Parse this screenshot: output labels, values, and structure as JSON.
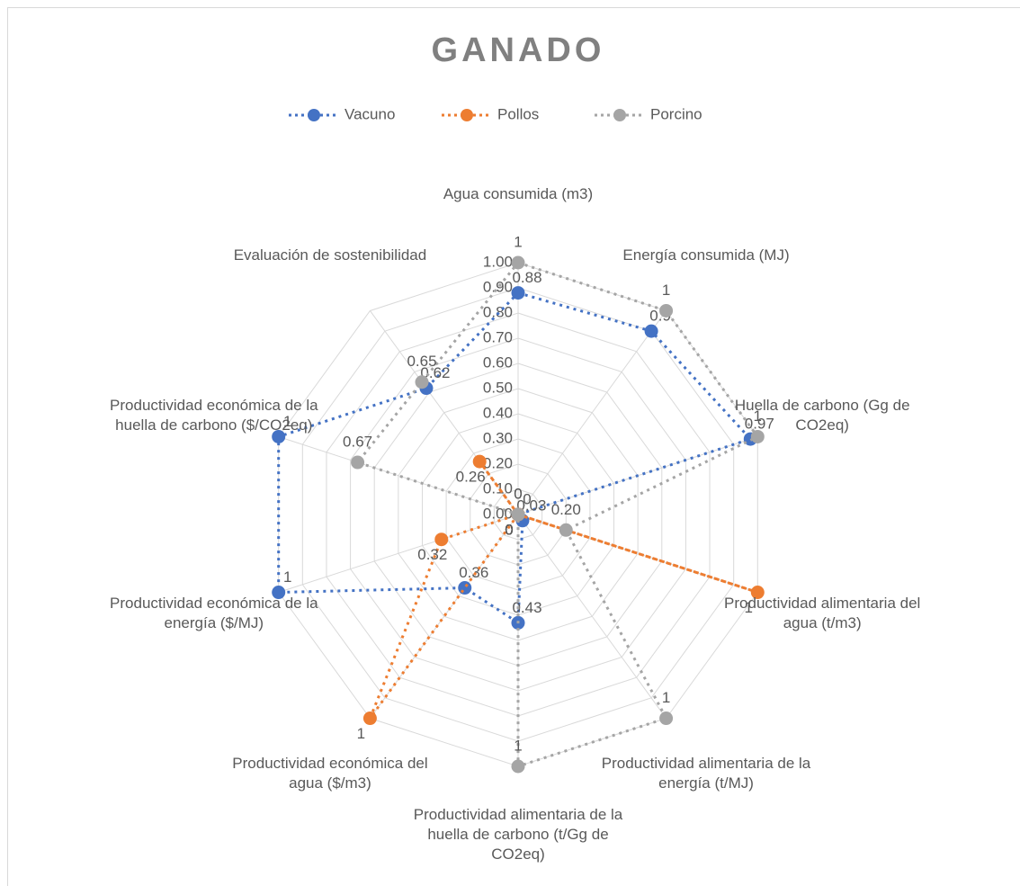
{
  "chart_data": {
    "type": "radar",
    "title": "GANADO",
    "categories": [
      "Agua consumida (m3)",
      "Energía consumida (MJ)",
      "Huella de carbono (Gg de CO2eq)",
      "Productividad alimentaria del agua (t/m3)",
      "Productividad alimentaria de la energía (t/MJ)",
      "Productividad alimentaria de la huella de carbono (t/Gg de CO2eq)",
      "Productividad económica del agua ($/m3)",
      "Productividad económica de la energía ($/MJ)",
      "Productividad económica de la huella de carbono ($/CO2eq)",
      "Evaluación de sostenibilidad"
    ],
    "series": [
      {
        "name": "Vacuno",
        "color": "#4472c4",
        "values": [
          0.88,
          0.9,
          0.97,
          0,
          0.03,
          0.43,
          0.36,
          1,
          1,
          0.62
        ]
      },
      {
        "name": "Pollos",
        "color": "#ed7d31",
        "values": [
          0,
          0,
          0,
          1,
          0,
          0,
          1,
          0.32,
          0,
          0.26
        ]
      },
      {
        "name": "Porcino",
        "color": "#a5a5a5",
        "values": [
          1,
          1,
          1,
          0.2,
          1,
          1,
          0,
          0,
          0.67,
          0.65
        ],
        "value_labels": [
          "1",
          "1",
          "1",
          "0.20",
          "1",
          "1",
          "0",
          "0",
          "0.67",
          "0.65"
        ]
      }
    ],
    "rlim": [
      0,
      1
    ],
    "rticks": [
      {
        "value": 0,
        "label": "0.00"
      },
      {
        "value": 0.1,
        "label": "0.10"
      },
      {
        "value": 0.2,
        "label": "0.20"
      },
      {
        "value": 0.3,
        "label": "0.30"
      },
      {
        "value": 0.4,
        "label": "0.40"
      },
      {
        "value": 0.5,
        "label": "0.50"
      },
      {
        "value": 0.6,
        "label": "0.60"
      },
      {
        "value": 0.7,
        "label": "0.70"
      },
      {
        "value": 0.8,
        "label": "0.80"
      },
      {
        "value": 0.9,
        "label": "0.90"
      },
      {
        "value": 1,
        "label": "1.00"
      }
    ],
    "legend": "top",
    "grid": true
  }
}
